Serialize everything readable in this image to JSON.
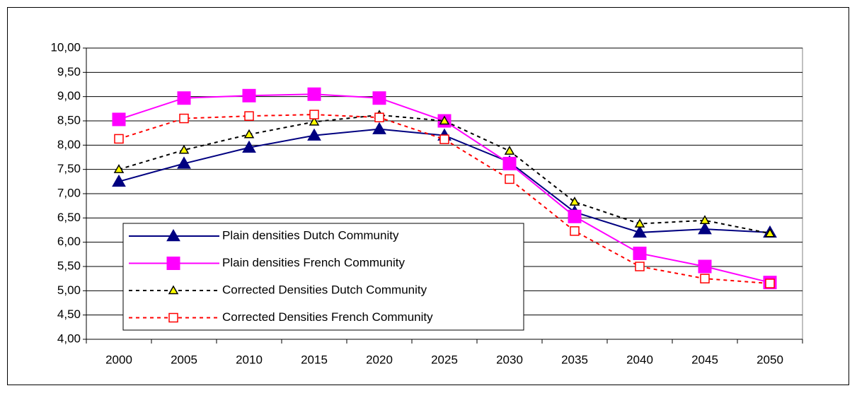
{
  "chart_data": {
    "type": "line",
    "categories": [
      "2000",
      "2005",
      "2010",
      "2015",
      "2020",
      "2025",
      "2030",
      "2035",
      "2040",
      "2045",
      "2050"
    ],
    "series": [
      {
        "name": "Plain densities Dutch Community",
        "color": "#000080",
        "marker": "triangle",
        "marker_fill": "#000080",
        "line_style": "solid",
        "values": [
          7.25,
          7.62,
          7.95,
          8.2,
          8.33,
          8.2,
          7.65,
          6.62,
          6.2,
          6.27,
          6.2
        ]
      },
      {
        "name": "Plain densities French Community",
        "color": "#ff00ff",
        "marker": "square",
        "marker_fill": "#ff00ff",
        "line_style": "solid",
        "values": [
          8.53,
          8.97,
          9.02,
          9.05,
          8.97,
          8.5,
          7.62,
          6.53,
          5.77,
          5.5,
          5.17
        ]
      },
      {
        "name": "Corrected Densities Dutch Community",
        "color": "#000000",
        "marker": "triangle",
        "marker_fill": "#ffff00",
        "line_style": "dashed",
        "values": [
          7.5,
          7.9,
          8.22,
          8.48,
          8.62,
          8.5,
          7.88,
          6.83,
          6.38,
          6.45,
          6.18
        ]
      },
      {
        "name": "Corrected Densities French Community",
        "color": "#ff0000",
        "marker": "square",
        "marker_fill": "#ffffff",
        "line_style": "dashed",
        "values": [
          8.13,
          8.55,
          8.6,
          8.63,
          8.57,
          8.12,
          7.3,
          6.23,
          5.5,
          5.25,
          5.15
        ]
      }
    ],
    "ylim": [
      4,
      10
    ],
    "yticks": [
      {
        "value": 4,
        "label": "4,00"
      },
      {
        "value": 4.5,
        "label": "4,50"
      },
      {
        "value": 5,
        "label": "5,00"
      },
      {
        "value": 5.5,
        "label": "5,50"
      },
      {
        "value": 6,
        "label": "6,00"
      },
      {
        "value": 6.5,
        "label": "6,50"
      },
      {
        "value": 7,
        "label": "7,00"
      },
      {
        "value": 7.5,
        "label": "7,50"
      },
      {
        "value": 8,
        "label": "8,00"
      },
      {
        "value": 8.5,
        "label": "8,50"
      },
      {
        "value": 9,
        "label": "9,00"
      },
      {
        "value": 9.5,
        "label": "9,50"
      },
      {
        "value": 10,
        "label": "10,00"
      }
    ],
    "grid": true,
    "legend": "lower-left"
  }
}
